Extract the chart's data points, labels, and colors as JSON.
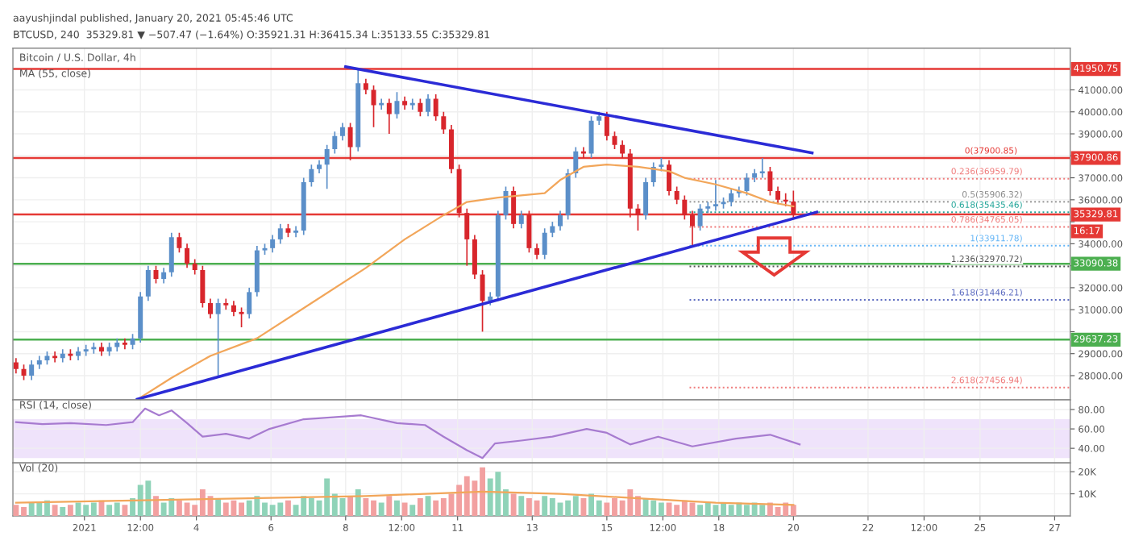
{
  "chart_data": [
    {
      "type": "candlestick",
      "title": "aayushjindal published, January 20, 2021 05:45:46 UTC",
      "subtitle": "BTCUSD, 240  35329.81 ▼ −507.47 (−1.64%) O:35921.31 H:36415.34 L:35133.55 C:35329.81",
      "x": [
        "2020-12-30T04:00",
        "2020-12-30T09:00",
        "2020-12-30T14:00",
        "2020-12-30T19:00",
        "2020-12-31T00:00",
        "2020-12-31T05:00",
        "2020-12-31T10:00",
        "2020-12-31T15:00",
        "2020-12-31T20:00",
        "2021-01-01T01:00",
        "2021-01-01T06:00",
        "2021-01-01T11:00",
        "2021-01-01T16:00",
        "2021-01-01T21:00",
        "2021-01-02T02:00",
        "2021-01-02T07:00",
        "2021-01-02T12:00",
        "2021-01-02T17:00",
        "2021-01-02T22:00",
        "2021-01-03T03:00",
        "2021-01-03T08:00",
        "2021-01-03T13:00",
        "2021-01-03T18:00",
        "2021-01-03T23:00",
        "2021-01-04T04:00",
        "2021-01-04T09:00",
        "2021-01-04T14:00",
        "2021-01-04T19:00",
        "2021-01-05T00:00",
        "2021-01-05T05:00",
        "2021-01-05T10:00",
        "2021-01-05T15:00",
        "2021-01-05T20:00",
        "2021-01-06T01:00",
        "2021-01-06T06:00",
        "2021-01-06T11:00",
        "2021-01-06T16:00",
        "2021-01-06T21:00",
        "2021-01-07T02:00",
        "2021-01-07T07:00",
        "2021-01-07T12:00",
        "2021-01-07T17:00",
        "2021-01-07T22:00",
        "2021-01-08T03:00",
        "2021-01-08T08:00",
        "2021-01-08T13:00",
        "2021-01-08T18:00",
        "2021-01-08T23:00",
        "2021-01-09T04:00",
        "2021-01-09T09:00",
        "2021-01-09T14:00",
        "2021-01-09T19:00",
        "2021-01-10T00:00",
        "2021-01-10T05:00",
        "2021-01-10T10:00",
        "2021-01-10T15:00",
        "2021-01-10T20:00",
        "2021-01-11T01:00",
        "2021-01-11T06:00",
        "2021-01-11T11:00",
        "2021-01-11T16:00",
        "2021-01-11T21:00",
        "2021-01-12T02:00",
        "2021-01-12T07:00",
        "2021-01-12T12:00",
        "2021-01-12T17:00",
        "2021-01-12T22:00",
        "2021-01-13T03:00",
        "2021-01-13T08:00",
        "2021-01-13T13:00",
        "2021-01-13T18:00",
        "2021-01-13T23:00",
        "2021-01-14T04:00",
        "2021-01-14T09:00",
        "2021-01-14T14:00",
        "2021-01-14T19:00",
        "2021-01-15T00:00",
        "2021-01-15T05:00",
        "2021-01-15T10:00",
        "2021-01-15T15:00",
        "2021-01-15T20:00",
        "2021-01-16T01:00",
        "2021-01-16T06:00",
        "2021-01-16T11:00",
        "2021-01-16T16:00",
        "2021-01-16T21:00",
        "2021-01-17T02:00",
        "2021-01-17T07:00",
        "2021-01-17T12:00",
        "2021-01-17T17:00",
        "2021-01-17T22:00",
        "2021-01-18T03:00",
        "2021-01-18T08:00",
        "2021-01-18T13:00",
        "2021-01-18T18:00",
        "2021-01-18T23:00",
        "2021-01-19T04:00",
        "2021-01-19T09:00",
        "2021-01-19T14:00",
        "2021-01-19T19:00",
        "2021-01-20T00:00"
      ],
      "ohlc": [
        [
          28600,
          28800,
          28100,
          28300
        ],
        [
          28300,
          28500,
          27800,
          28000
        ],
        [
          28000,
          28700,
          27800,
          28500
        ],
        [
          28500,
          28900,
          28300,
          28700
        ],
        [
          28700,
          29100,
          28500,
          28900
        ],
        [
          28900,
          29100,
          28600,
          28800
        ],
        [
          28800,
          29200,
          28600,
          29000
        ],
        [
          29000,
          29200,
          28700,
          28900
        ],
        [
          28900,
          29300,
          28700,
          29100
        ],
        [
          29100,
          29400,
          28900,
          29200
        ],
        [
          29200,
          29500,
          29000,
          29300
        ],
        [
          29300,
          29500,
          28900,
          29100
        ],
        [
          29100,
          29500,
          28900,
          29300
        ],
        [
          29300,
          29700,
          29100,
          29500
        ],
        [
          29500,
          29700,
          29200,
          29400
        ],
        [
          29400,
          29900,
          29200,
          29700
        ],
        [
          29700,
          31800,
          29500,
          31600
        ],
        [
          31600,
          33000,
          31400,
          32800
        ],
        [
          32800,
          33000,
          32200,
          32400
        ],
        [
          32400,
          32900,
          32200,
          32700
        ],
        [
          32700,
          34500,
          32500,
          34300
        ],
        [
          34300,
          34500,
          33600,
          33800
        ],
        [
          33800,
          34000,
          32900,
          33100
        ],
        [
          33100,
          33300,
          32600,
          32800
        ],
        [
          32800,
          33000,
          31100,
          31300
        ],
        [
          31300,
          31500,
          30600,
          30800
        ],
        [
          30800,
          31500,
          28000,
          31300
        ],
        [
          31300,
          31500,
          31000,
          31200
        ],
        [
          31200,
          31400,
          30700,
          30900
        ],
        [
          30900,
          31100,
          30200,
          30800
        ],
        [
          30800,
          32000,
          30600,
          31800
        ],
        [
          31800,
          33900,
          31600,
          33700
        ],
        [
          33700,
          34000,
          33500,
          33800
        ],
        [
          33800,
          34400,
          33600,
          34200
        ],
        [
          34200,
          34900,
          34000,
          34700
        ],
        [
          34700,
          34900,
          34300,
          34500
        ],
        [
          34500,
          34800,
          34300,
          34600
        ],
        [
          34600,
          37000,
          34400,
          36800
        ],
        [
          36800,
          37600,
          36600,
          37400
        ],
        [
          37400,
          37800,
          37200,
          37600
        ],
        [
          37600,
          38500,
          36500,
          38300
        ],
        [
          38300,
          39100,
          38100,
          38900
        ],
        [
          38900,
          39500,
          38700,
          39300
        ],
        [
          39300,
          39500,
          37800,
          38400
        ],
        [
          38400,
          41950,
          38200,
          41300
        ],
        [
          41300,
          41500,
          40800,
          41000
        ],
        [
          41000,
          41200,
          39300,
          40300
        ],
        [
          40300,
          40600,
          40100,
          40400
        ],
        [
          40400,
          40600,
          39000,
          39900
        ],
        [
          39900,
          40900,
          39700,
          40500
        ],
        [
          40500,
          40700,
          40100,
          40300
        ],
        [
          40300,
          40600,
          40100,
          40400
        ],
        [
          40400,
          40600,
          39800,
          40000
        ],
        [
          40000,
          40800,
          39800,
          40600
        ],
        [
          40600,
          40800,
          39600,
          39800
        ],
        [
          39800,
          40000,
          39000,
          39200
        ],
        [
          39200,
          39400,
          37200,
          37400
        ],
        [
          37400,
          37600,
          35200,
          35400
        ],
        [
          35400,
          35600,
          33000,
          34200
        ],
        [
          34200,
          34400,
          32400,
          32600
        ],
        [
          32600,
          32800,
          30000,
          31400
        ],
        [
          31400,
          31800,
          31200,
          31600
        ],
        [
          31600,
          35500,
          31400,
          35300
        ],
        [
          35300,
          36600,
          35100,
          36400
        ],
        [
          36400,
          36600,
          34700,
          34900
        ],
        [
          34900,
          35500,
          34700,
          35300
        ],
        [
          35300,
          35500,
          33600,
          33800
        ],
        [
          33800,
          34000,
          33300,
          33500
        ],
        [
          33500,
          34700,
          33300,
          34500
        ],
        [
          34500,
          35000,
          34300,
          34800
        ],
        [
          34800,
          35500,
          34600,
          35300
        ],
        [
          35300,
          37400,
          35100,
          37200
        ],
        [
          37200,
          38400,
          37000,
          38200
        ],
        [
          38200,
          38400,
          37900,
          38100
        ],
        [
          38100,
          39800,
          37900,
          39600
        ],
        [
          39600,
          40000,
          39400,
          39800
        ],
        [
          39800,
          40000,
          38700,
          38900
        ],
        [
          38900,
          39100,
          38300,
          38500
        ],
        [
          38500,
          38700,
          37900,
          38100
        ],
        [
          38100,
          38300,
          35200,
          35600
        ],
        [
          35600,
          35800,
          34600,
          35300
        ],
        [
          35300,
          37000,
          35100,
          36800
        ],
        [
          36800,
          37700,
          36600,
          37500
        ],
        [
          37500,
          37900,
          37300,
          37600
        ],
        [
          37600,
          37800,
          36200,
          36400
        ],
        [
          36400,
          36600,
          35800,
          36000
        ],
        [
          36000,
          36200,
          35100,
          35300
        ],
        [
          35300,
          35500,
          33900,
          34800
        ],
        [
          34800,
          35800,
          34600,
          35600
        ],
        [
          35600,
          35900,
          35400,
          35700
        ],
        [
          35700,
          36900,
          35500,
          35800
        ],
        [
          35800,
          36100,
          35600,
          35900
        ],
        [
          35900,
          36500,
          35700,
          36300
        ],
        [
          36300,
          36600,
          36100,
          36400
        ],
        [
          36400,
          37200,
          36200,
          37000
        ],
        [
          37000,
          37400,
          36800,
          37200
        ],
        [
          37200,
          37900,
          37000,
          37300
        ],
        [
          37300,
          37500,
          36200,
          36400
        ],
        [
          36400,
          36600,
          35800,
          36000
        ],
        [
          36000,
          36300,
          35700,
          35921.31
        ],
        [
          35921.31,
          36415.34,
          35133.55,
          35329.81
        ]
      ],
      "colors": [
        "#d8262c",
        "#d8262c",
        "#5b8fc9",
        "#5b8fc9",
        "#5b8fc9",
        "#d8262c",
        "#5b8fc9",
        "#d8262c",
        "#5b8fc9",
        "#5b8fc9",
        "#5b8fc9",
        "#d8262c",
        "#5b8fc9",
        "#5b8fc9",
        "#d8262c",
        "#5b8fc9",
        "#5b8fc9",
        "#5b8fc9",
        "#d8262c",
        "#5b8fc9",
        "#5b8fc9",
        "#d8262c",
        "#d8262c",
        "#d8262c",
        "#d8262c",
        "#d8262c",
        "#5b8fc9",
        "#d8262c",
        "#d8262c",
        "#d8262c",
        "#5b8fc9",
        "#5b8fc9",
        "#5b8fc9",
        "#5b8fc9",
        "#5b8fc9",
        "#d8262c",
        "#5b8fc9",
        "#5b8fc9",
        "#5b8fc9",
        "#5b8fc9",
        "#5b8fc9",
        "#5b8fc9",
        "#5b8fc9",
        "#d8262c",
        "#5b8fc9",
        "#d8262c",
        "#d8262c",
        "#5b8fc9",
        "#d8262c",
        "#5b8fc9",
        "#d8262c",
        "#5b8fc9",
        "#d8262c",
        "#5b8fc9",
        "#d8262c",
        "#d8262c",
        "#d8262c",
        "#d8262c",
        "#d8262c",
        "#d8262c",
        "#d8262c",
        "#5b8fc9",
        "#5b8fc9",
        "#5b8fc9",
        "#d8262c",
        "#5b8fc9",
        "#d8262c",
        "#d8262c",
        "#5b8fc9",
        "#5b8fc9",
        "#5b8fc9",
        "#5b8fc9",
        "#5b8fc9",
        "#d8262c",
        "#5b8fc9",
        "#5b8fc9",
        "#d8262c",
        "#d8262c",
        "#d8262c",
        "#d8262c",
        "#d8262c",
        "#5b8fc9",
        "#5b8fc9",
        "#5b8fc9",
        "#d8262c",
        "#d8262c",
        "#d8262c",
        "#d8262c",
        "#5b8fc9",
        "#5b8fc9",
        "#5b8fc9",
        "#5b8fc9",
        "#5b8fc9",
        "#5b8fc9",
        "#5b8fc9",
        "#5b8fc9",
        "#5b8fc9",
        "#d8262c",
        "#d8262c",
        "#d8262c",
        "#d8262c"
      ],
      "series": [
        {
          "type": "line",
          "color": "#f2a65a",
          "x": [
            "2021-01-02T12:00",
            "2021-01-03T08:00",
            "2021-01-04T09:00",
            "2021-01-05T15:00",
            "2021-01-07T02:00",
            "2021-01-08T13:00",
            "2021-01-09T14:00",
            "2021-01-10T15:00",
            "2021-01-11T06:00",
            "2021-01-12T02:00",
            "2021-01-13T08:00",
            "2021-01-13T18:00",
            "2021-01-14T09:00",
            "2021-01-15T00:00",
            "2021-01-15T20:00",
            "2021-01-16T16:00",
            "2021-01-17T02:00",
            "2021-01-17T22:00",
            "2021-01-18T18:00",
            "2021-01-19T09:00",
            "2021-01-20T00:00"
          ],
          "values": [
            27000,
            27900,
            28900,
            29700,
            31300,
            32900,
            34200,
            35300,
            35900,
            36100,
            36300,
            36900,
            37500,
            37600,
            37500,
            37300,
            37000,
            36700,
            36300,
            35900,
            35700
          ]
        },
        {
          "type": "line",
          "color": "#2b2bd6",
          "x": [
            "2021-01-08T00:00",
            "2021-01-20T12:00"
          ],
          "values": [
            42050,
            38130
          ]
        },
        {
          "type": "line",
          "color": "#2b2bd6",
          "x": [
            "2021-01-02T10:00",
            "2021-01-20T15:00"
          ],
          "values": [
            26930,
            35440
          ]
        }
      ],
      "ref_lines": [
        {
          "axis": "y",
          "value": 41950.75,
          "label": "41950.75",
          "color": "#e53935",
          "line_style": "solid"
        },
        {
          "axis": "y",
          "value": 37900.86,
          "label": "37900.86",
          "color": "#e53935",
          "line_style": "solid"
        },
        {
          "axis": "y",
          "value": 36959.79,
          "label": "0.236(36959.79)",
          "color": "#ef7b7b",
          "line_style": "dotted"
        },
        {
          "axis": "y",
          "value": 35906.32,
          "label": "0.5(35906.32)",
          "color": "#888888",
          "line_style": "dotted"
        },
        {
          "axis": "y",
          "value": 35435.46,
          "label": "0.618(35435.46)",
          "color": "#26a69a",
          "line_style": "dotted"
        },
        {
          "axis": "y",
          "value": 35329.81,
          "label": "35329.81",
          "color": "#e53935",
          "line_style": "solid"
        },
        {
          "axis": "y",
          "value": 34765.05,
          "label": "0.786(34765.05)",
          "color": "#ef7b7b",
          "line_style": "dotted"
        },
        {
          "axis": "y",
          "value": 33911.78,
          "label": "1(33911.78)",
          "color": "#64b5f6",
          "line_style": "dotted"
        },
        {
          "axis": "y",
          "value": 33090.38,
          "label": "33090.38",
          "color": "#4caf50",
          "line_style": "solid"
        },
        {
          "axis": "y",
          "value": 32970.72,
          "label": "1.236(32970.72)",
          "color": "#555555",
          "line_style": "dotted"
        },
        {
          "axis": "y",
          "value": 31446.21,
          "label": "1.618(31446.21)",
          "color": "#5c6bc0",
          "line_style": "dotted"
        },
        {
          "axis": "y",
          "value": 29637.23,
          "label": "29637.23",
          "color": "#4caf50",
          "line_style": "solid"
        },
        {
          "axis": "y",
          "value": 27456.94,
          "label": "2.618(27456.94)",
          "color": "#ef7b7b",
          "line_style": "dotted"
        }
      ],
      "annotations": [
        "Bitcoin / U.S. Dollar, 4h",
        "MA (55, close)",
        "16:17",
        {
          "text": "0(37900.85)",
          "x": "2021-01-26T00:00",
          "y": 37900.86
        }
      ],
      "xlim": [
        "2020-12-30T02:00",
        "2021-01-27T10:00"
      ],
      "ylim": [
        26900,
        42900
      ],
      "yticks": [
        {
          "value": 28000,
          "label": "28000.00"
        },
        {
          "value": 29000,
          "label": "29000.00"
        },
        {
          "value": 30000,
          "label": null
        },
        {
          "value": 31000,
          "label": "31000.00"
        },
        {
          "value": 32000,
          "label": "32000.00"
        },
        {
          "value": 33000,
          "label": null
        },
        {
          "value": 34000,
          "label": "34000.00"
        },
        {
          "value": 35000,
          "label": null
        },
        {
          "value": 36000,
          "label": "36000.00"
        },
        {
          "value": 37000,
          "label": "37000.00"
        },
        {
          "value": 38000,
          "label": null
        },
        {
          "value": 39000,
          "label": "39000.00"
        },
        {
          "value": 40000,
          "label": "40000.00"
        },
        {
          "value": 41000,
          "label": "41000.00"
        }
      ],
      "grid": true,
      "tick_labels": "y"
    },
    {
      "type": "line",
      "series": [
        {
          "type": "line",
          "color": "#a77bd0",
          "x": [
            "2020-12-30T04:00",
            "2020-12-30T21:00",
            "2020-12-31T15:00",
            "2021-01-01T14:00",
            "2021-01-02T07:00",
            "2021-01-02T15:00",
            "2021-01-03T00:00",
            "2021-01-03T08:00",
            "2021-01-03T18:00",
            "2021-01-04T04:00",
            "2021-01-04T19:00",
            "2021-01-05T10:00",
            "2021-01-05T23:00",
            "2021-01-06T21:00",
            "2021-01-07T16:00",
            "2021-01-08T10:00",
            "2021-01-09T09:00",
            "2021-01-10T03:00",
            "2021-01-10T15:00",
            "2021-01-11T06:00",
            "2021-01-11T16:00",
            "2021-01-12T00:00",
            "2021-01-12T17:00",
            "2021-01-13T13:00",
            "2021-01-14T11:00",
            "2021-01-15T00:00",
            "2021-01-15T15:00",
            "2021-01-16T09:00",
            "2021-01-17T07:00",
            "2021-01-18T11:00",
            "2021-01-19T09:00",
            "2021-01-20T04:00"
          ],
          "values": [
            67,
            65,
            66,
            64,
            67,
            81,
            74,
            79,
            66,
            52,
            55,
            50,
            60,
            70,
            72,
            74,
            66,
            64,
            52,
            38,
            30,
            45,
            48,
            52,
            60,
            56,
            44,
            52,
            42,
            50,
            54,
            44
          ]
        }
      ],
      "bands": [
        {
          "axis": "y",
          "from": 30,
          "to": 70,
          "color": "#efe3fb"
        }
      ],
      "annotations": [
        "RSI (14, close)"
      ],
      "xlim": [
        "2020-12-30T02:00",
        "2021-01-27T10:00"
      ],
      "ylim": [
        25,
        90
      ],
      "yticks": [
        {
          "value": 40,
          "label": "40.00"
        },
        {
          "value": 60,
          "label": "60.00"
        },
        {
          "value": 80,
          "label": "80.00"
        }
      ],
      "grid": true,
      "tick_labels": "y"
    },
    {
      "type": "bar",
      "x": [
        "2020-12-30T04:00",
        "2020-12-30T09:00",
        "2020-12-30T14:00",
        "2020-12-30T19:00",
        "2020-12-31T00:00",
        "2020-12-31T05:00",
        "2020-12-31T10:00",
        "2020-12-31T15:00",
        "2020-12-31T20:00",
        "2021-01-01T01:00",
        "2021-01-01T06:00",
        "2021-01-01T11:00",
        "2021-01-01T16:00",
        "2021-01-01T21:00",
        "2021-01-02T02:00",
        "2021-01-02T07:00",
        "2021-01-02T12:00",
        "2021-01-02T17:00",
        "2021-01-02T22:00",
        "2021-01-03T03:00",
        "2021-01-03T08:00",
        "2021-01-03T13:00",
        "2021-01-03T18:00",
        "2021-01-03T23:00",
        "2021-01-04T04:00",
        "2021-01-04T09:00",
        "2021-01-04T14:00",
        "2021-01-04T19:00",
        "2021-01-05T00:00",
        "2021-01-05T05:00",
        "2021-01-05T10:00",
        "2021-01-05T15:00",
        "2021-01-05T20:00",
        "2021-01-06T01:00",
        "2021-01-06T06:00",
        "2021-01-06T11:00",
        "2021-01-06T16:00",
        "2021-01-06T21:00",
        "2021-01-07T02:00",
        "2021-01-07T07:00",
        "2021-01-07T12:00",
        "2021-01-07T17:00",
        "2021-01-07T22:00",
        "2021-01-08T03:00",
        "2021-01-08T08:00",
        "2021-01-08T13:00",
        "2021-01-08T18:00",
        "2021-01-08T23:00",
        "2021-01-09T04:00",
        "2021-01-09T09:00",
        "2021-01-09T14:00",
        "2021-01-09T19:00",
        "2021-01-10T00:00",
        "2021-01-10T05:00",
        "2021-01-10T10:00",
        "2021-01-10T15:00",
        "2021-01-10T20:00",
        "2021-01-11T01:00",
        "2021-01-11T06:00",
        "2021-01-11T11:00",
        "2021-01-11T16:00",
        "2021-01-11T21:00",
        "2021-01-12T02:00",
        "2021-01-12T07:00",
        "2021-01-12T12:00",
        "2021-01-12T17:00",
        "2021-01-12T22:00",
        "2021-01-13T03:00",
        "2021-01-13T08:00",
        "2021-01-13T13:00",
        "2021-01-13T18:00",
        "2021-01-13T23:00",
        "2021-01-14T04:00",
        "2021-01-14T09:00",
        "2021-01-14T14:00",
        "2021-01-14T19:00",
        "2021-01-15T00:00",
        "2021-01-15T05:00",
        "2021-01-15T10:00",
        "2021-01-15T15:00",
        "2021-01-15T20:00",
        "2021-01-16T01:00",
        "2021-01-16T06:00",
        "2021-01-16T11:00",
        "2021-01-16T16:00",
        "2021-01-16T21:00",
        "2021-01-17T02:00",
        "2021-01-17T07:00",
        "2021-01-17T12:00",
        "2021-01-17T17:00",
        "2021-01-17T22:00",
        "2021-01-18T03:00",
        "2021-01-18T08:00",
        "2021-01-18T13:00",
        "2021-01-18T18:00",
        "2021-01-18T23:00",
        "2021-01-19T04:00",
        "2021-01-19T09:00",
        "2021-01-19T14:00",
        "2021-01-19T19:00",
        "2021-01-20T00:00"
      ],
      "series": [
        {
          "type": "bar",
          "values": [
            5,
            4,
            6,
            6,
            7,
            5,
            4,
            5,
            6,
            5,
            6,
            7,
            5,
            6,
            5,
            8,
            14,
            16,
            9,
            6,
            8,
            7,
            6,
            5,
            12,
            9,
            8,
            6,
            7,
            6,
            7,
            9,
            6,
            5,
            6,
            7,
            5,
            9,
            8,
            7,
            17,
            10,
            8,
            9,
            12,
            8,
            7,
            6,
            9,
            7,
            6,
            5,
            8,
            9,
            7,
            8,
            10,
            14,
            18,
            16,
            22,
            17,
            20,
            12,
            10,
            9,
            8,
            7,
            9,
            8,
            6,
            7,
            9,
            8,
            10,
            7,
            6,
            8,
            7,
            12,
            9,
            8,
            7,
            6,
            6,
            5,
            7,
            6,
            5,
            6,
            5,
            6,
            5,
            6,
            5,
            6,
            5,
            6,
            4,
            6,
            5
          ],
          "colors": [
            "#f2a0a0",
            "#f2a0a0",
            "#8fd3b8",
            "#8fd3b8",
            "#8fd3b8",
            "#f2a0a0",
            "#8fd3b8",
            "#f2a0a0",
            "#8fd3b8",
            "#8fd3b8",
            "#8fd3b8",
            "#f2a0a0",
            "#8fd3b8",
            "#8fd3b8",
            "#f2a0a0",
            "#8fd3b8",
            "#8fd3b8",
            "#8fd3b8",
            "#f2a0a0",
            "#8fd3b8",
            "#8fd3b8",
            "#f2a0a0",
            "#f2a0a0",
            "#f2a0a0",
            "#f2a0a0",
            "#f2a0a0",
            "#8fd3b8",
            "#f2a0a0",
            "#f2a0a0",
            "#f2a0a0",
            "#8fd3b8",
            "#8fd3b8",
            "#8fd3b8",
            "#8fd3b8",
            "#8fd3b8",
            "#f2a0a0",
            "#8fd3b8",
            "#8fd3b8",
            "#8fd3b8",
            "#8fd3b8",
            "#8fd3b8",
            "#8fd3b8",
            "#8fd3b8",
            "#f2a0a0",
            "#8fd3b8",
            "#f2a0a0",
            "#f2a0a0",
            "#8fd3b8",
            "#f2a0a0",
            "#8fd3b8",
            "#f2a0a0",
            "#8fd3b8",
            "#f2a0a0",
            "#8fd3b8",
            "#f2a0a0",
            "#f2a0a0",
            "#f2a0a0",
            "#f2a0a0",
            "#f2a0a0",
            "#f2a0a0",
            "#f2a0a0",
            "#8fd3b8",
            "#8fd3b8",
            "#8fd3b8",
            "#f2a0a0",
            "#8fd3b8",
            "#f2a0a0",
            "#f2a0a0",
            "#8fd3b8",
            "#8fd3b8",
            "#8fd3b8",
            "#8fd3b8",
            "#8fd3b8",
            "#f2a0a0",
            "#8fd3b8",
            "#8fd3b8",
            "#f2a0a0",
            "#f2a0a0",
            "#f2a0a0",
            "#f2a0a0",
            "#f2a0a0",
            "#8fd3b8",
            "#8fd3b8",
            "#8fd3b8",
            "#f2a0a0",
            "#f2a0a0",
            "#f2a0a0",
            "#f2a0a0",
            "#8fd3b8",
            "#8fd3b8",
            "#8fd3b8",
            "#8fd3b8",
            "#8fd3b8",
            "#8fd3b8",
            "#8fd3b8",
            "#8fd3b8",
            "#8fd3b8",
            "#f2a0a0",
            "#f2a0a0",
            "#f2a0a0",
            "#f2a0a0"
          ]
        },
        {
          "type": "line",
          "color": "#f2a65a",
          "x": [
            "2020-12-30T04:00",
            "2021-01-02T07:00",
            "2021-01-05T10:00",
            "2021-01-08T13:00",
            "2021-01-11T16:00",
            "2021-01-13T18:00",
            "2021-01-15T20:00",
            "2021-01-17T22:00",
            "2021-01-20T00:00"
          ],
          "values": [
            6,
            7,
            8,
            9,
            11,
            10,
            8,
            6,
            5
          ]
        }
      ],
      "annotations": [
        "Vol (20)"
      ],
      "xlim": [
        "2020-12-30T02:00",
        "2021-01-27T10:00"
      ],
      "ylim": [
        0,
        24
      ],
      "xticks": [
        {
          "value": "2021-01-01",
          "label": "2021"
        },
        {
          "value": "2021-01-02T12:00",
          "label": "12:00"
        },
        {
          "value": "2021-01-04",
          "label": "4"
        },
        {
          "value": "2021-01-06",
          "label": "6"
        },
        {
          "value": "2021-01-08",
          "label": "8"
        },
        {
          "value": "2021-01-09T12:00",
          "label": "12:00"
        },
        {
          "value": "2021-01-11",
          "label": "11"
        },
        {
          "value": "2021-01-13",
          "label": "13"
        },
        {
          "value": "2021-01-15",
          "label": "15"
        },
        {
          "value": "2021-01-16T12:00",
          "label": "12:00"
        },
        {
          "value": "2021-01-18",
          "label": "18"
        },
        {
          "value": "2021-01-20",
          "label": "20"
        },
        {
          "value": "2021-01-22",
          "label": "22"
        },
        {
          "value": "2021-01-23T12:00",
          "label": "12:00"
        },
        {
          "value": "2021-01-25",
          "label": "25"
        },
        {
          "value": "2021-01-27",
          "label": "27"
        }
      ],
      "yticks": [
        {
          "value": 10,
          "label": "10K"
        },
        {
          "value": 20,
          "label": "20K"
        }
      ],
      "grid": true
    }
  ]
}
